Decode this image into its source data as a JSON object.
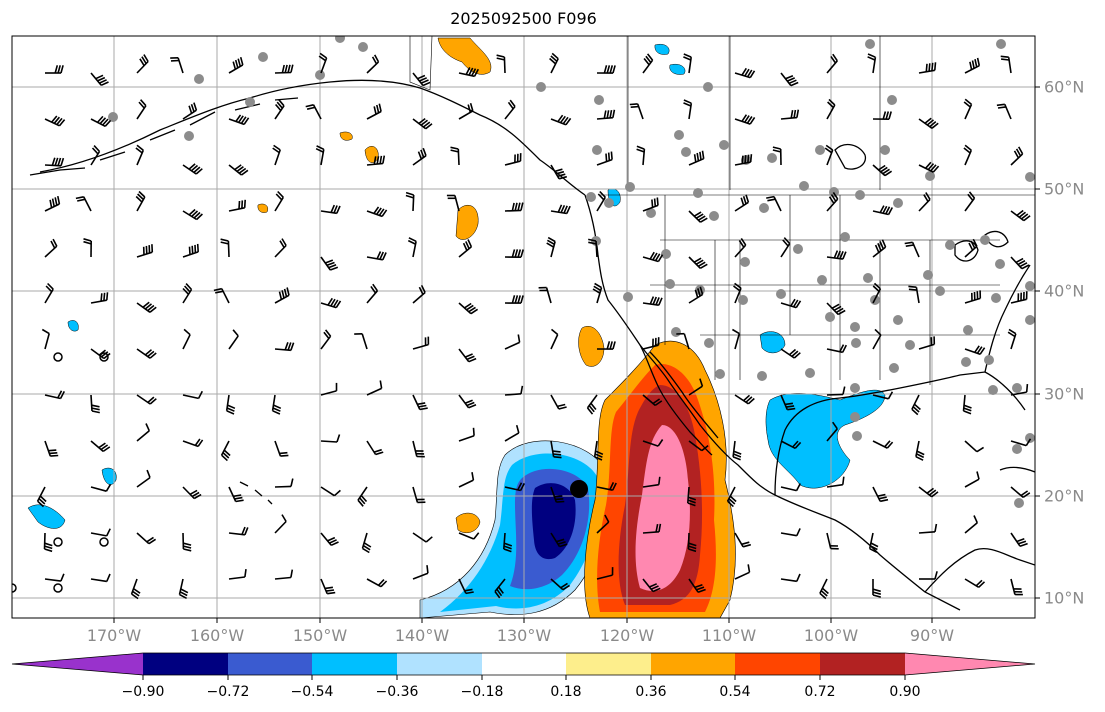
{
  "title": "2025092500 F096",
  "map": {
    "longitude_labels": [
      "170°W",
      "160°W",
      "150°W",
      "140°W",
      "130°W",
      "120°W",
      "110°W",
      "100°W",
      "90°W"
    ],
    "latitude_labels": [
      "60°N",
      "50°N",
      "40°N",
      "30°N",
      "20°N",
      "10°N"
    ],
    "marked_point": {
      "lon": -124.8,
      "lat": 20.5
    }
  },
  "colorbar": {
    "tick_labels": [
      "−0.90",
      "−0.72",
      "−0.54",
      "−0.36",
      "−0.18",
      "0.18",
      "0.36",
      "0.54",
      "0.72",
      "0.90"
    ],
    "colors": [
      "#9932cc",
      "#000080",
      "#3a5bd0",
      "#00bfff",
      "#b0e2ff",
      "#ffffff",
      "#fdee8c",
      "#ffa500",
      "#ff4500",
      "#b22222",
      "#ff88b0"
    ]
  },
  "colors": {
    "gridline": "#aaaaaa",
    "tick_label": "#8a8a8a",
    "coast": "#000000",
    "station_dot": "#8c8c8c"
  }
}
